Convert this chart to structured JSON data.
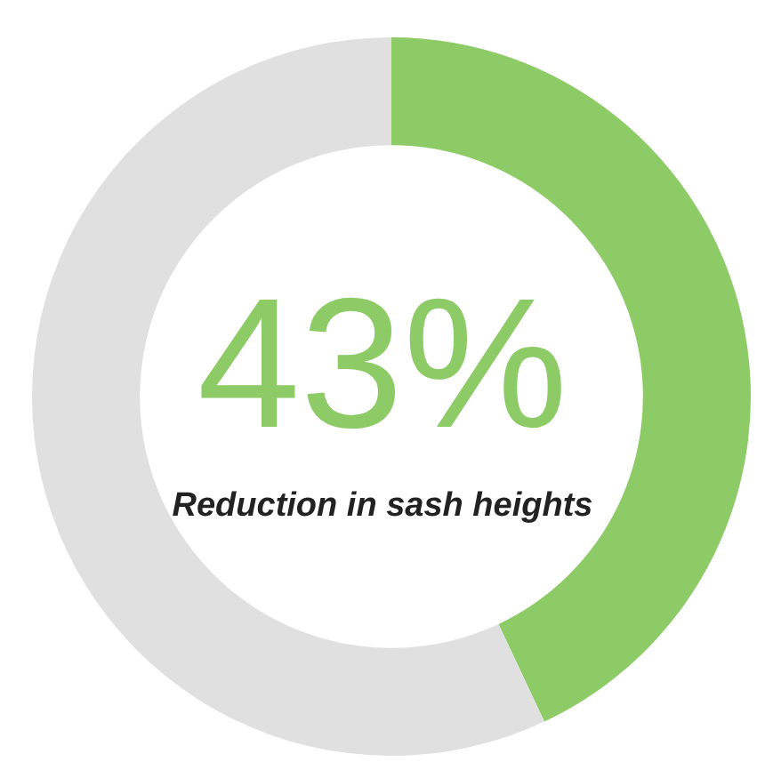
{
  "chart_data": {
    "type": "donut",
    "categories": [
      null,
      null
    ],
    "values": [
      43,
      57
    ],
    "colors": [
      "#8ccb66",
      "#e0e0e0"
    ],
    "value_labels": [
      "43%",
      null
    ],
    "annotations": [
      "Reduction in sash heights"
    ],
    "legend": false
  }
}
